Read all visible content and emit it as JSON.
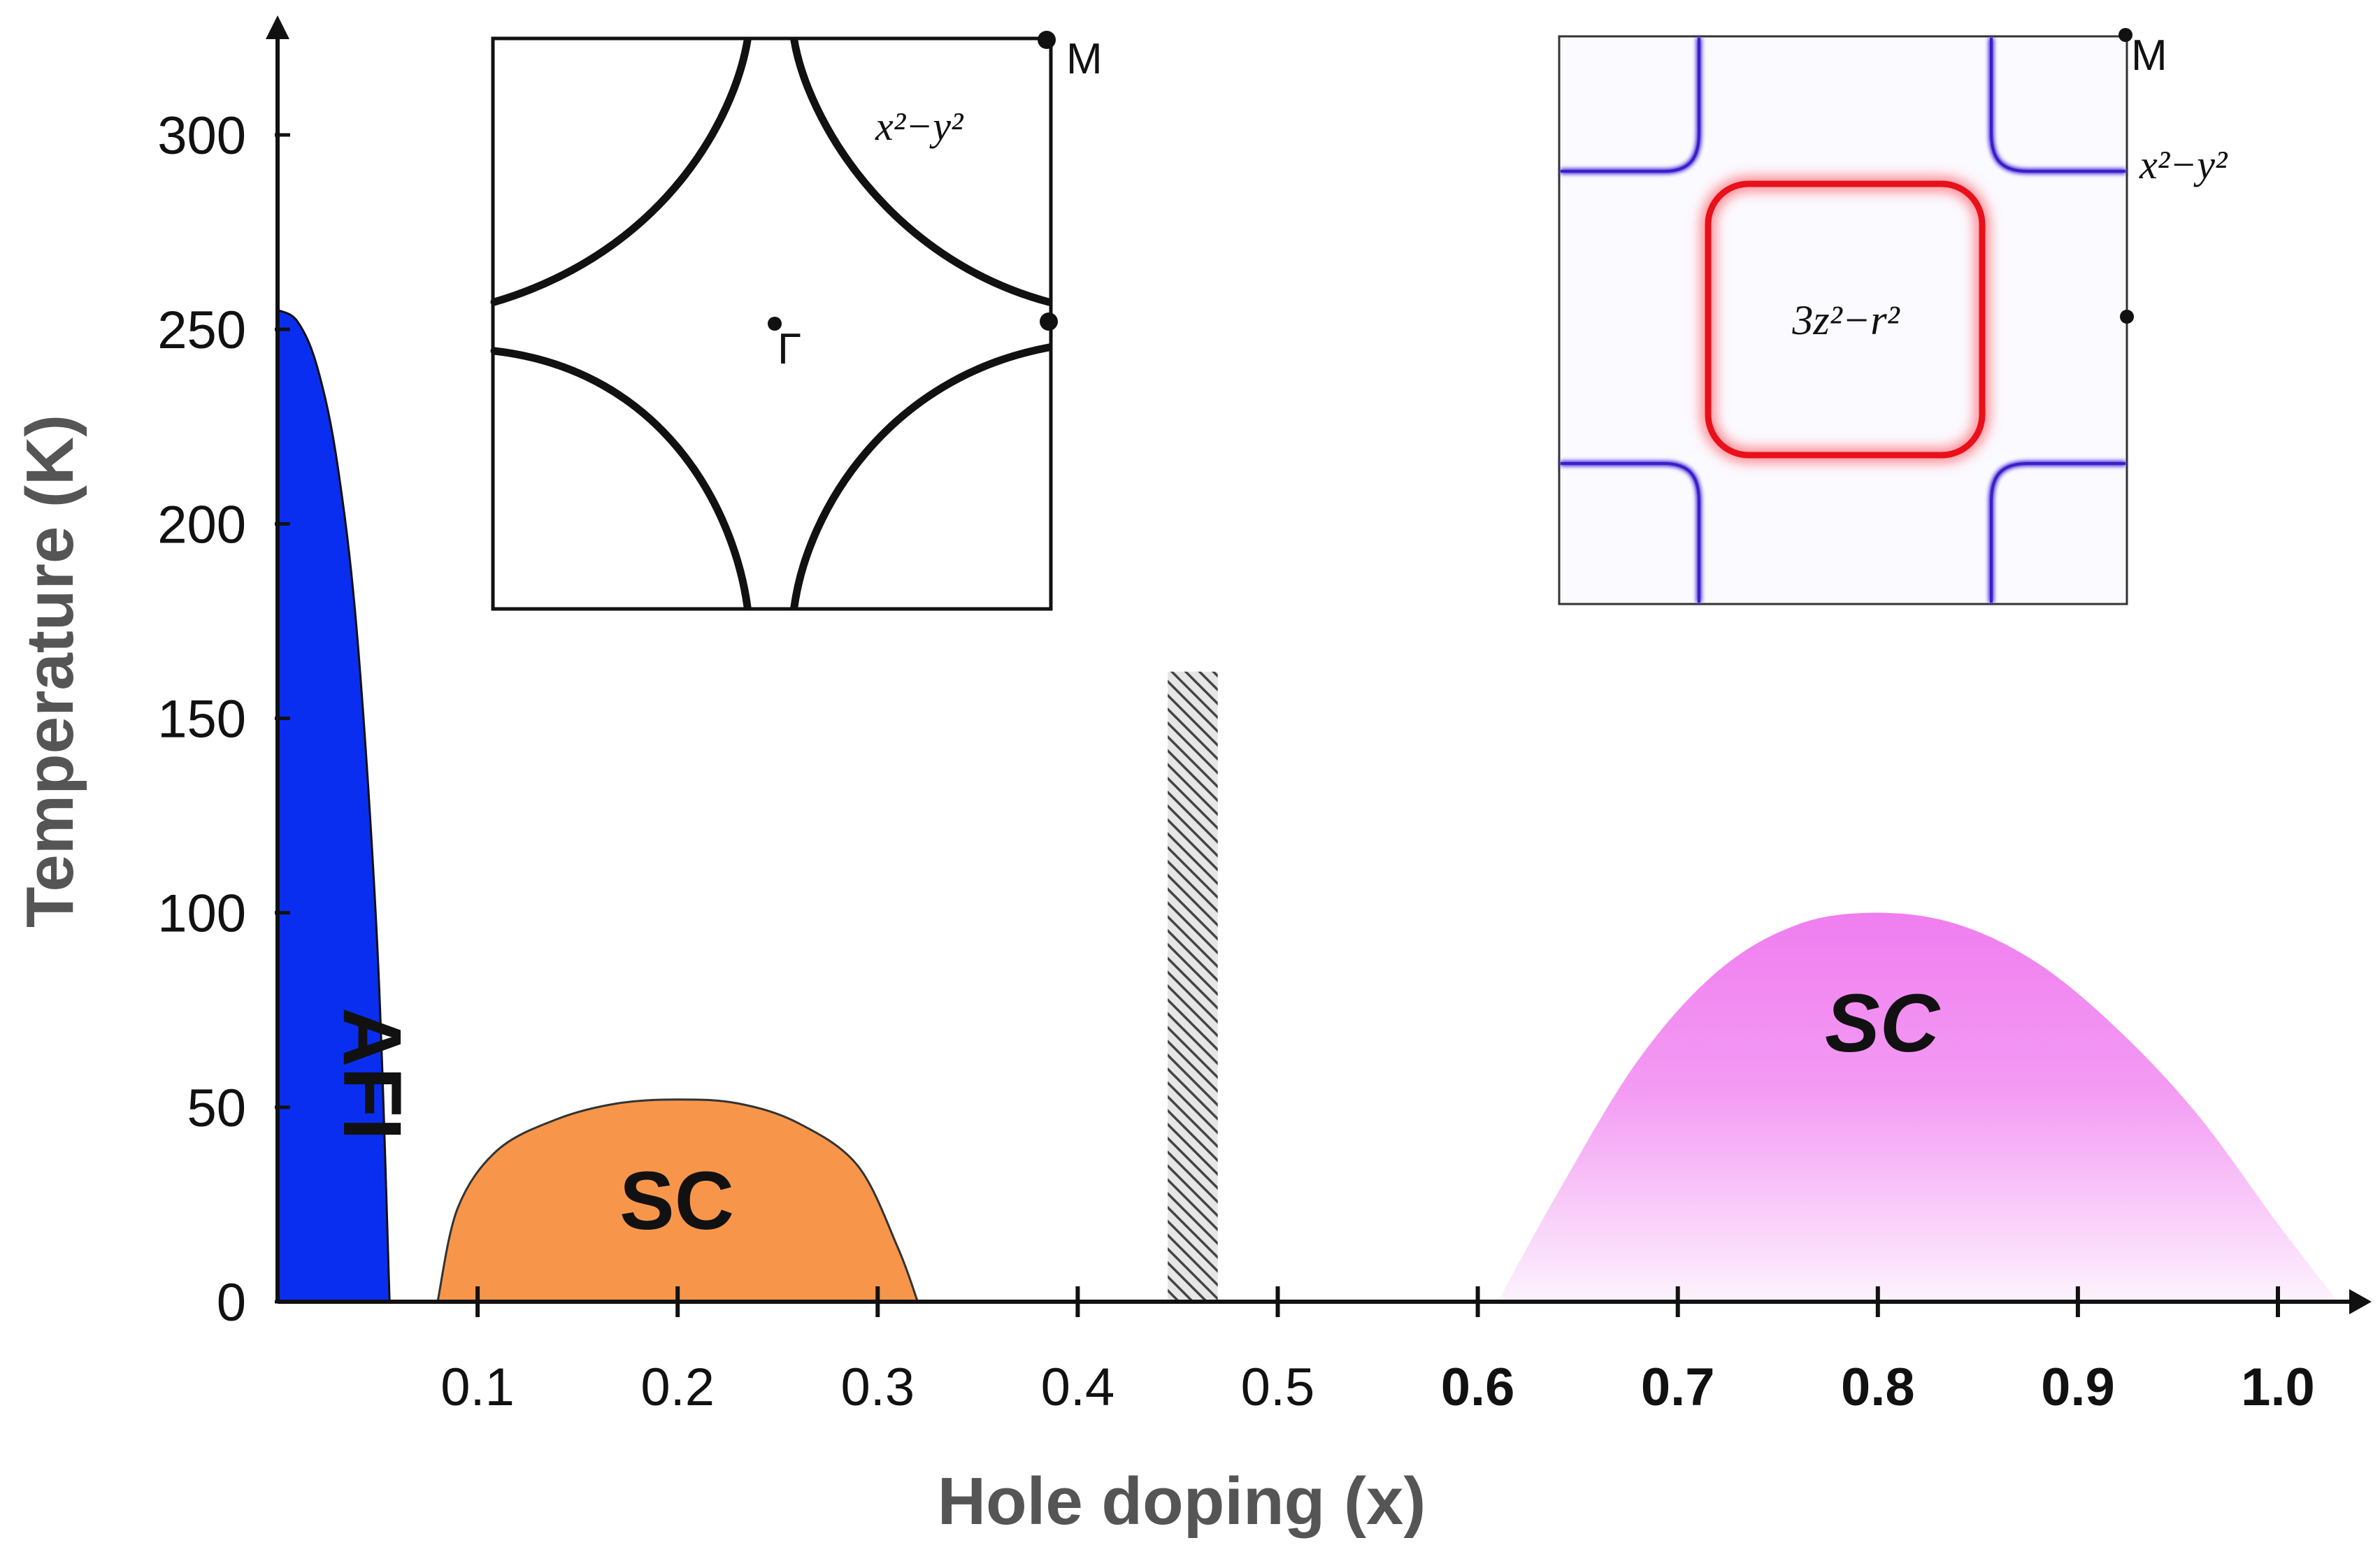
{
  "chart_data": {
    "type": "area",
    "title": "",
    "xlabel": "Hole doping (x)",
    "ylabel": "Temperature (K)",
    "xlim": [
      0,
      1.05
    ],
    "ylim": [
      0,
      330
    ],
    "x_ticks": [
      0.1,
      0.2,
      0.3,
      0.4,
      0.5,
      0.6,
      0.7,
      0.8,
      0.9,
      1.0
    ],
    "x_tick_labels": [
      "0.1",
      "0.2",
      "0.3",
      "0.4",
      "0.5",
      "0.6",
      "0.7",
      "0.8",
      "0.9",
      "1.0"
    ],
    "y_ticks": [
      0,
      50,
      100,
      150,
      200,
      250,
      300
    ],
    "y_tick_labels": [
      "0",
      "50",
      "100",
      "150",
      "200",
      "250",
      "300"
    ],
    "grid": false,
    "regions": [
      {
        "name": "AFI",
        "label": "AFI",
        "color": "#0a2ef0",
        "x": [
          0.0,
          0.01,
          0.02,
          0.03,
          0.04,
          0.05,
          0.056
        ],
        "y": [
          255,
          252,
          240,
          215,
          170,
          90,
          0
        ]
      },
      {
        "name": "SC-low",
        "label": "SC",
        "color": "#f7964a",
        "x": [
          0.08,
          0.09,
          0.11,
          0.14,
          0.17,
          0.2,
          0.23,
          0.26,
          0.29,
          0.31,
          0.32
        ],
        "y": [
          0,
          24,
          39,
          47,
          51,
          52,
          51,
          46,
          35,
          14,
          0
        ]
      },
      {
        "name": "SC-high",
        "label": "SC",
        "color": "#f07ef0",
        "x": [
          0.61,
          0.64,
          0.68,
          0.72,
          0.76,
          0.8,
          0.84,
          0.88,
          0.92,
          0.96,
          1.0,
          1.03
        ],
        "y": [
          0,
          28,
          62,
          85,
          97,
          100,
          97,
          87,
          70,
          48,
          20,
          0
        ]
      }
    ],
    "hatched_band": {
      "x_range": [
        0.445,
        0.47
      ],
      "y_range": [
        0,
        162
      ],
      "color": "#444444"
    }
  },
  "insets": {
    "left": {
      "orbital_label": "x²−y²",
      "corner_label": "M",
      "center_label": "Γ"
    },
    "right": {
      "orbital_label": "x²−y²",
      "center_orbital_label": "3z²−r²",
      "corner_label": "M"
    }
  },
  "colors": {
    "axis": "#111111",
    "inset_border": "#111111",
    "inset_curve": "#111111",
    "right_outer": "#4a2bd8",
    "right_inner": "#e8101a"
  }
}
